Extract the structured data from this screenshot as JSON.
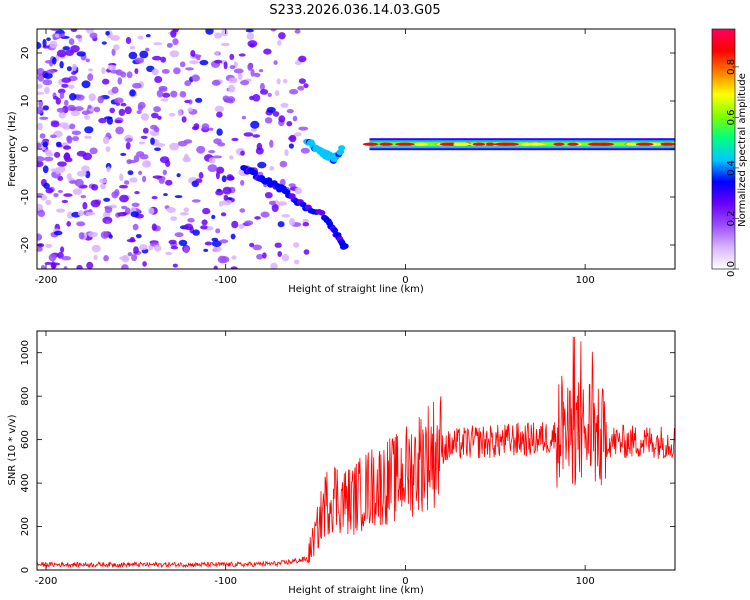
{
  "title": "S233.2026.036.14.03.G05",
  "chart_data": [
    {
      "type": "heatmap",
      "name": "spectrogram",
      "xlabel": "Height of straight line (km)",
      "ylabel": "Frequency (Hz)",
      "xlim": [
        -205,
        150
      ],
      "ylim": [
        -25,
        25
      ],
      "xticks": [
        -200,
        -100,
        0,
        100
      ],
      "yticks": [
        -20,
        -10,
        0,
        10,
        20
      ],
      "colorbar": {
        "label": "Normalized spectral amplitude",
        "range": [
          0,
          0.95
        ],
        "ticks": [
          0.0,
          0.2,
          0.4,
          0.6,
          0.8
        ],
        "colors": [
          "#ffffff",
          "#d9b3ff",
          "#9a4dff",
          "#6a00ff",
          "#0000ff",
          "#00c8ff",
          "#00ff80",
          "#80ff00",
          "#ffff00",
          "#ff8000",
          "#ff0000",
          "#ff0060"
        ]
      },
      "features": {
        "scatter_noise_x_range": [
          -205,
          -55
        ],
        "descending_branch": [
          [
            -55,
            2
          ],
          [
            -50,
            0
          ],
          [
            -45,
            -1
          ],
          [
            -40,
            -2
          ],
          [
            -35,
            0
          ]
        ],
        "tail_branch": [
          [
            -90,
            -4
          ],
          [
            -80,
            -6
          ],
          [
            -70,
            -8
          ],
          [
            -60,
            -11
          ],
          [
            -45,
            -14
          ],
          [
            -38,
            -18
          ],
          [
            -33,
            -21
          ]
        ],
        "carrier_line": {
          "x_range": [
            -20,
            150
          ],
          "frequency": 1
        }
      }
    },
    {
      "type": "line",
      "name": "snr",
      "xlabel": "Height of straight line (km)",
      "ylabel": "SNR (10 * v/v)",
      "xlim": [
        -205,
        150
      ],
      "ylim": [
        0,
        1100
      ],
      "xticks": [
        -200,
        -100,
        0,
        100
      ],
      "yticks": [
        0,
        200,
        400,
        600,
        800,
        1000
      ],
      "color": "#ff0000",
      "series": [
        {
          "name": "SNR",
          "x": [
            -205,
            -180,
            -150,
            -120,
            -90,
            -70,
            -55,
            -50,
            -45,
            -40,
            -35,
            -30,
            -25,
            -20,
            -15,
            -10,
            -5,
            0,
            5,
            10,
            20,
            30,
            40,
            50,
            60,
            70,
            80,
            85,
            88,
            90,
            95,
            100,
            103,
            106,
            110,
            115,
            120,
            130,
            140,
            150
          ],
          "y": [
            25,
            25,
            25,
            25,
            25,
            30,
            50,
            160,
            300,
            350,
            320,
            320,
            350,
            380,
            390,
            410,
            420,
            450,
            480,
            520,
            560,
            580,
            590,
            590,
            600,
            600,
            610,
            620,
            700,
            600,
            640,
            620,
            660,
            600,
            600,
            590,
            590,
            590,
            590,
            590
          ]
        }
      ]
    }
  ]
}
